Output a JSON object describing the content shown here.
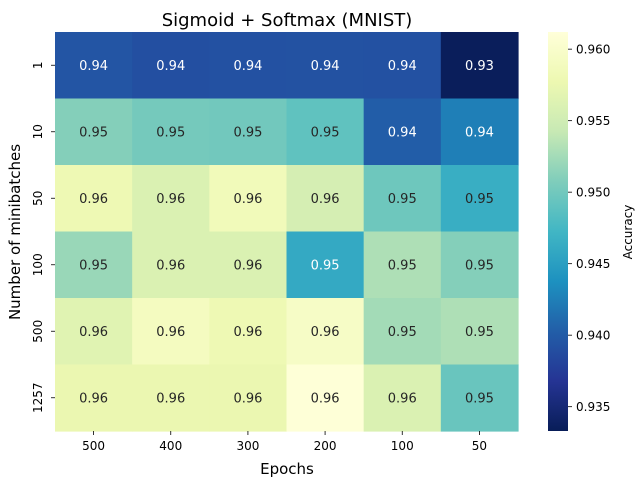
{
  "chart_data": {
    "type": "heatmap",
    "title": "Sigmoid + Softmax (MNIST)",
    "xlabel": "Epochs",
    "ylabel": "Number of minibatches",
    "x_categories": [
      "500",
      "400",
      "300",
      "200",
      "100",
      "50"
    ],
    "y_categories": [
      "1",
      "10",
      "50",
      "100",
      "500",
      "1257"
    ],
    "values": [
      [
        0.9395,
        0.939,
        0.9392,
        0.9393,
        0.9392,
        0.9335
      ],
      [
        0.951,
        0.9502,
        0.95,
        0.949,
        0.9402,
        0.9425
      ],
      [
        0.958,
        0.956,
        0.9585,
        0.9555,
        0.9498,
        0.9465
      ],
      [
        0.952,
        0.956,
        0.956,
        0.946,
        0.953,
        0.951
      ],
      [
        0.9565,
        0.959,
        0.958,
        0.9595,
        0.9525,
        0.953
      ],
      [
        0.9575,
        0.9575,
        0.9575,
        0.961,
        0.956,
        0.9495
      ]
    ],
    "annotations": [
      [
        "0.94",
        "0.94",
        "0.94",
        "0.94",
        "0.94",
        "0.93"
      ],
      [
        "0.95",
        "0.95",
        "0.95",
        "0.95",
        "0.94",
        "0.94"
      ],
      [
        "0.96",
        "0.96",
        "0.96",
        "0.96",
        "0.95",
        "0.95"
      ],
      [
        "0.95",
        "0.96",
        "0.96",
        "0.95",
        "0.95",
        "0.95"
      ],
      [
        "0.96",
        "0.96",
        "0.96",
        "0.96",
        "0.95",
        "0.95"
      ],
      [
        "0.96",
        "0.96",
        "0.96",
        "0.96",
        "0.96",
        "0.95"
      ]
    ],
    "colorbar": {
      "label": "Accuracy",
      "vmin": 0.9333,
      "vmax": 0.9612,
      "ticks": [
        "0.935",
        "0.940",
        "0.945",
        "0.950",
        "0.955",
        "0.960"
      ],
      "colormap": "YlGnBu"
    },
    "grid": false,
    "legend": "none"
  }
}
